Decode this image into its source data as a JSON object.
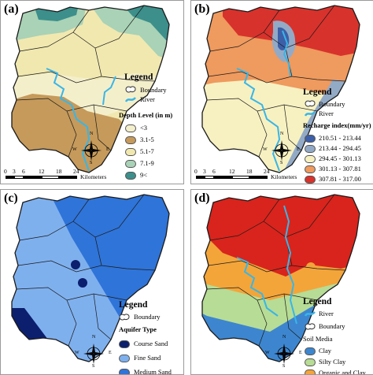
{
  "panels": {
    "a": {
      "label": "(a)",
      "legend": {
        "title": "Legend",
        "boundary": "Boundary",
        "river": "River",
        "subtitle": "Depth Level (in m)",
        "classes": [
          {
            "label": "<3",
            "color": "#f4efcb"
          },
          {
            "label": "3.1-5",
            "color": "#c59a5b"
          },
          {
            "label": "5.1-7",
            "color": "#f1e8b0"
          },
          {
            "label": "7.1-9",
            "color": "#a9d2b6"
          },
          {
            "label": "9<",
            "color": "#3c8f8b"
          }
        ]
      },
      "scale": {
        "ticks": [
          "0",
          "3",
          "6",
          "12",
          "18",
          "24"
        ],
        "unit": "Kilometers"
      },
      "compass": {
        "N": "N",
        "S": "S",
        "E": "E",
        "W": "W"
      }
    },
    "b": {
      "label": "(b)",
      "legend": {
        "title": "Legend",
        "boundary": "Boundary",
        "river": "River",
        "subtitle": "Recharge index(mm/yr)",
        "classes": [
          {
            "label": "210.51 - 213.44",
            "color": "#3d5fa8"
          },
          {
            "label": "213.44 - 294.45",
            "color": "#93aac6"
          },
          {
            "label": "294.45 - 301.13",
            "color": "#f7f1c2"
          },
          {
            "label": "301.13 - 307.81",
            "color": "#ef9a5e"
          },
          {
            "label": "307.81 - 317.00",
            "color": "#d8322c"
          }
        ]
      },
      "scale": {
        "ticks": [
          "0",
          "3",
          "6",
          "12",
          "18",
          "24"
        ],
        "unit": "Kilometers"
      },
      "compass": {
        "N": "N",
        "S": "S",
        "E": "E",
        "W": "W"
      }
    },
    "c": {
      "label": "(c)",
      "legend": {
        "title": "Legend",
        "boundary": "Boundary",
        "subtitle": "Aquifer Type",
        "classes": [
          {
            "label": "Course Sand",
            "color": "#0c1f6e"
          },
          {
            "label": "Fine Sand",
            "color": "#7fb0ee"
          },
          {
            "label": "Medium Sand",
            "color": "#2f74d8"
          }
        ]
      },
      "compass": {
        "N": "N",
        "S": "S",
        "E": "E",
        "W": "W"
      }
    },
    "d": {
      "label": "(d)",
      "legend": {
        "title": "Legend",
        "river": "River",
        "boundary": "Boundary",
        "subtitle": "Soil Media",
        "classes": [
          {
            "label": "Clay",
            "color": "#3d86cf"
          },
          {
            "label": "Silty Clay",
            "color": "#b7dc95"
          },
          {
            "label": "Organic and Clay",
            "color": "#f3a53a"
          }
        ]
      },
      "compass": {
        "N": "N",
        "S": "S",
        "E": "E",
        "W": "W"
      }
    }
  },
  "colors": {
    "river": "#38b6e8",
    "boundary": "#1a1a1a"
  }
}
